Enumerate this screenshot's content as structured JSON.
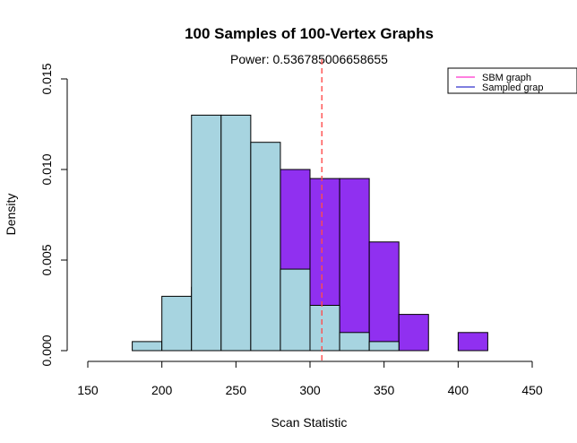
{
  "chart_data": {
    "type": "histogram",
    "title": "100 Samples of 100-Vertex Graphs",
    "subtitle": "Power: 0.536785006658655",
    "xlabel": "Scan Statistic",
    "ylabel": "Density",
    "xlim": [
      140,
      450
    ],
    "ylim": [
      0,
      0.015
    ],
    "x_ticks": [
      150,
      200,
      250,
      300,
      350,
      400,
      450
    ],
    "x_tick_labels": [
      "150",
      "200",
      "250",
      "300",
      "350",
      "400",
      "450"
    ],
    "y_ticks": [
      0,
      0.005,
      0.01,
      0.015
    ],
    "y_tick_labels": [
      "0.000",
      "0.005",
      "0.010",
      "0.015"
    ],
    "critical_line": {
      "x": 308,
      "color": "#ff4d4d",
      "style": "dashed"
    },
    "legend": {
      "position": "top-right",
      "entries": [
        {
          "label": "SBM graph",
          "color": "#ff33cc"
        },
        {
          "label": "Sampled grap",
          "color": "#3333cc"
        }
      ]
    },
    "series": [
      {
        "name": "SBM graph",
        "color": "#9030f0",
        "bins": [
          {
            "x0": 220,
            "x1": 240,
            "density": 0.0035
          },
          {
            "x0": 240,
            "x1": 260,
            "density": 0.0045
          },
          {
            "x0": 260,
            "x1": 280,
            "density": 0.008
          },
          {
            "x0": 280,
            "x1": 300,
            "density": 0.01
          },
          {
            "x0": 300,
            "x1": 320,
            "density": 0.0095
          },
          {
            "x0": 320,
            "x1": 340,
            "density": 0.0095
          },
          {
            "x0": 340,
            "x1": 360,
            "density": 0.006
          },
          {
            "x0": 360,
            "x1": 380,
            "density": 0.002
          },
          {
            "x0": 380,
            "x1": 400,
            "density": 0.0
          },
          {
            "x0": 400,
            "x1": 420,
            "density": 0.001
          }
        ]
      },
      {
        "name": "Sampled grap",
        "color": "#a7d4e0",
        "bins": [
          {
            "x0": 140,
            "x1": 160,
            "density": 0.0
          },
          {
            "x0": 160,
            "x1": 180,
            "density": 0.0
          },
          {
            "x0": 180,
            "x1": 200,
            "density": 0.0005
          },
          {
            "x0": 200,
            "x1": 220,
            "density": 0.003
          },
          {
            "x0": 220,
            "x1": 240,
            "density": 0.013
          },
          {
            "x0": 240,
            "x1": 260,
            "density": 0.013
          },
          {
            "x0": 260,
            "x1": 280,
            "density": 0.0115
          },
          {
            "x0": 280,
            "x1": 300,
            "density": 0.0045
          },
          {
            "x0": 300,
            "x1": 320,
            "density": 0.0025
          },
          {
            "x0": 320,
            "x1": 340,
            "density": 0.001
          },
          {
            "x0": 340,
            "x1": 360,
            "density": 0.0005
          }
        ]
      }
    ]
  }
}
